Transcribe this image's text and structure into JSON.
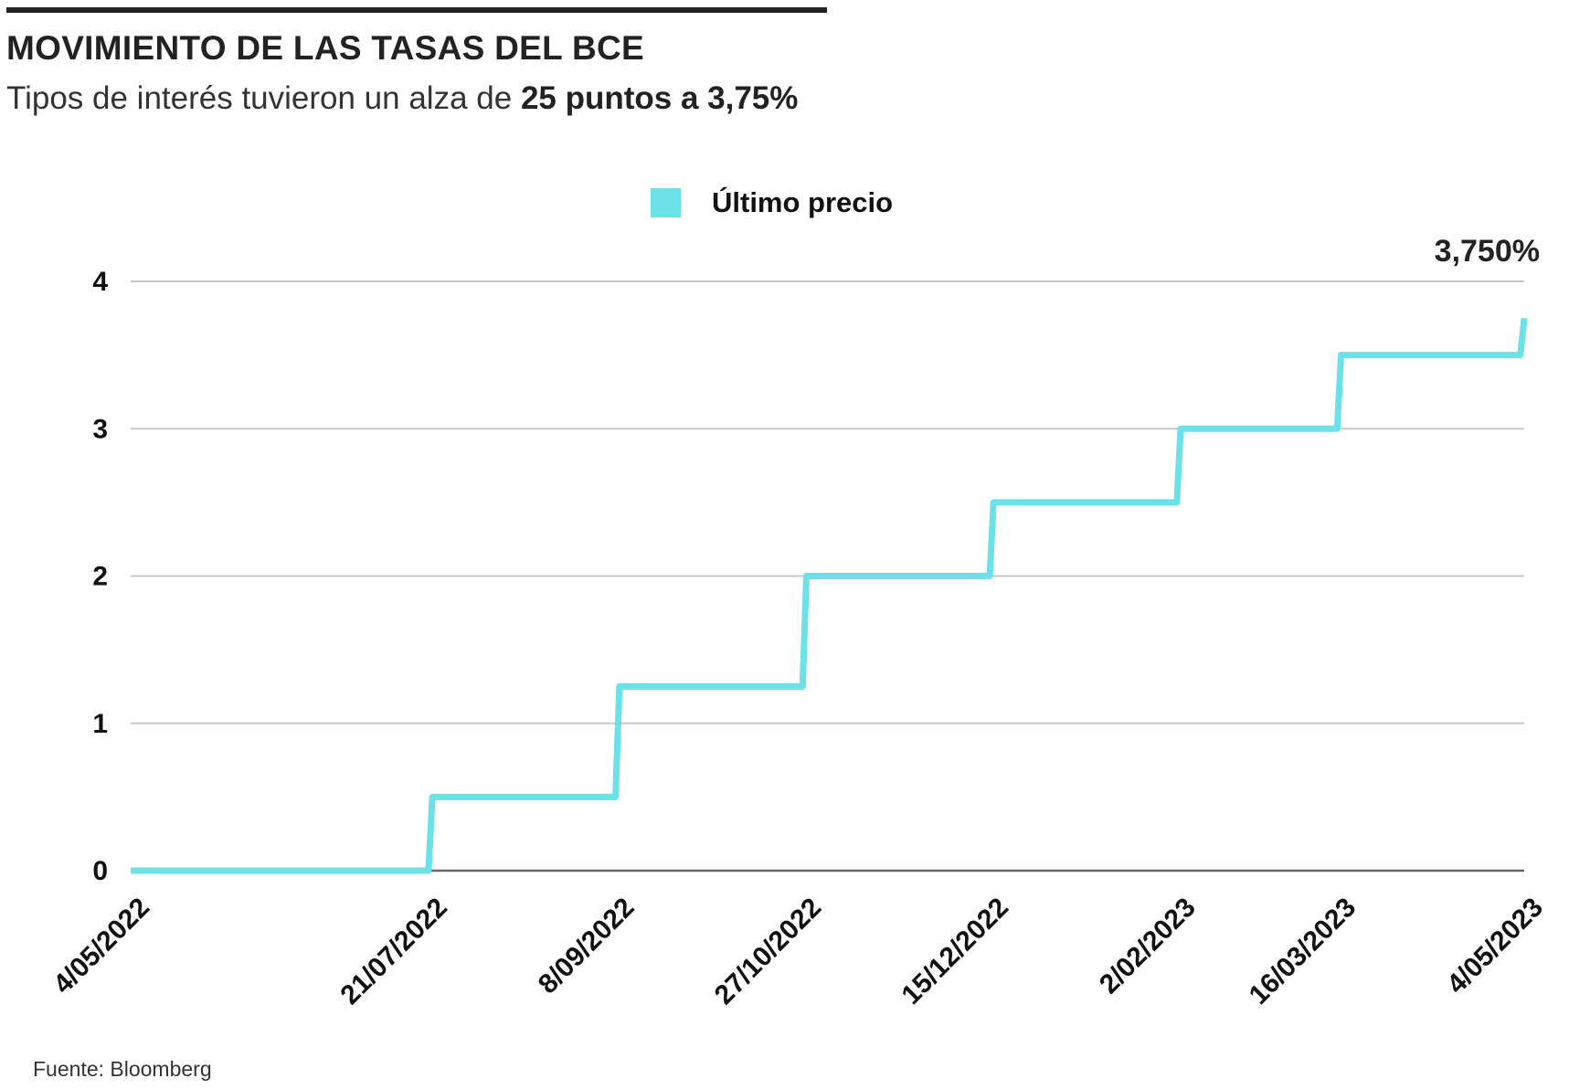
{
  "header": {
    "title": "MOVIMIENTO DE LAS TASAS DEL BCE",
    "subtitle_prefix": "Tipos de interés tuvieron un alza de ",
    "subtitle_bold": "25 puntos a 3,75%"
  },
  "footer": {
    "source": "Fuente: Bloomberg"
  },
  "colors": {
    "series": "#6ce1e7",
    "grid": "#c8c8c8",
    "baseline": "#666666",
    "text": "#222222"
  },
  "chart_data": {
    "type": "line",
    "interpolation": "step",
    "title": "MOVIMIENTO DE LAS TASAS DEL BCE",
    "subtitle": "Tipos de interés tuvieron un alza de 25 puntos a 3,75%",
    "xlabel": "",
    "ylabel": "",
    "xlim": [
      "2022-05-04",
      "2023-05-04"
    ],
    "ylim": [
      0,
      4
    ],
    "grid": true,
    "legend": "top-center",
    "y_ticks": [
      "0",
      "1",
      "2",
      "3",
      "4"
    ],
    "x_ticks": [
      {
        "date": "2022-05-04",
        "label": "4/05/2022"
      },
      {
        "date": "2022-07-21",
        "label": "21/07/2022"
      },
      {
        "date": "2022-09-08",
        "label": "8/09/2022"
      },
      {
        "date": "2022-10-27",
        "label": "27/10/2022"
      },
      {
        "date": "2022-12-15",
        "label": "15/12/2022"
      },
      {
        "date": "2023-02-02",
        "label": "2/02/2023"
      },
      {
        "date": "2023-03-16",
        "label": "16/03/2023"
      },
      {
        "date": "2023-05-04",
        "label": "4/05/2023"
      }
    ],
    "series": [
      {
        "name": "Último precio",
        "color": "#6ce1e7",
        "points": [
          {
            "date": "2022-05-04",
            "value": 0
          },
          {
            "date": "2022-07-21",
            "value": 0
          },
          {
            "date": "2022-07-22",
            "value": 0.5
          },
          {
            "date": "2022-09-08",
            "value": 0.5
          },
          {
            "date": "2022-09-09",
            "value": 1.25
          },
          {
            "date": "2022-10-27",
            "value": 1.25
          },
          {
            "date": "2022-10-28",
            "value": 2.0
          },
          {
            "date": "2022-12-15",
            "value": 2.0
          },
          {
            "date": "2022-12-16",
            "value": 2.5
          },
          {
            "date": "2023-02-02",
            "value": 2.5
          },
          {
            "date": "2023-02-03",
            "value": 3.0
          },
          {
            "date": "2023-03-16",
            "value": 3.0
          },
          {
            "date": "2023-03-17",
            "value": 3.5
          },
          {
            "date": "2023-05-03",
            "value": 3.5
          },
          {
            "date": "2023-05-04",
            "value": 3.75
          }
        ]
      }
    ],
    "end_label": "3,750%"
  }
}
